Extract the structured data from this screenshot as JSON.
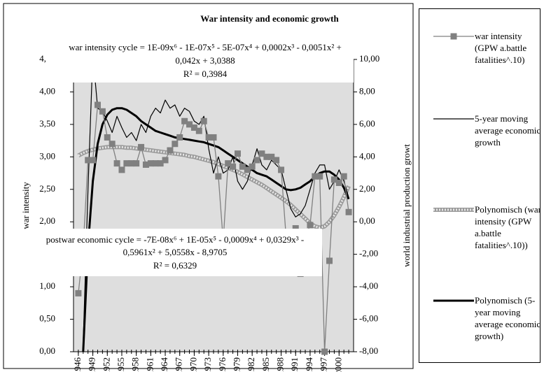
{
  "chart_data": {
    "type": "line",
    "title": "War intensity and economic growth",
    "ylabel": "war intensity",
    "y2label": "world industrial production growt",
    "annotations": [
      {
        "lines": [
          "war intensity cycle = 1E-09x⁶ - 1E-07x⁵ - 5E-07x⁴ + 0,0002x³ - 0,0051x² +",
          "0,042x + 3,0388",
          "R² = 0,3984"
        ]
      },
      {
        "lines": [
          "postwar economic cycle = -7E-08x⁶ + 1E-05x⁵ - 0,0009x⁴ + 0,0329x³ -",
          "0,5961x² + 5,0558x - 8,9705",
          "R² = 0,6329"
        ]
      }
    ],
    "x": [
      1946,
      1947,
      1948,
      1949,
      1950,
      1951,
      1952,
      1953,
      1954,
      1955,
      1956,
      1957,
      1958,
      1959,
      1960,
      1961,
      1962,
      1963,
      1964,
      1965,
      1966,
      1967,
      1968,
      1969,
      1970,
      1971,
      1972,
      1973,
      1974,
      1975,
      1976,
      1977,
      1978,
      1979,
      1980,
      1981,
      1982,
      1983,
      1984,
      1985,
      1986,
      1987,
      1988,
      1989,
      1990,
      1991,
      1992,
      1993,
      1994,
      1995,
      1996,
      1997,
      1998,
      1999,
      2000,
      2001,
      2002
    ],
    "xlim": [
      1945,
      2003
    ],
    "xticks": [
      1946,
      1949,
      1952,
      1955,
      1958,
      1961,
      1964,
      1967,
      1970,
      1973,
      1976,
      1979,
      1982,
      1985,
      1988,
      1991,
      1994,
      1997,
      2000
    ],
    "ylim": [
      0,
      4.5
    ],
    "yticks": [
      {
        "value": 0,
        "label": "0,00"
      },
      {
        "value": 0.5,
        "label": "0,50"
      },
      {
        "value": 1,
        "label": "1,00"
      },
      {
        "value": 1.5,
        "label": "1,50"
      },
      {
        "value": 2,
        "label": "2,00"
      },
      {
        "value": 2.5,
        "label": "2,50"
      },
      {
        "value": 3,
        "label": "3,00"
      },
      {
        "value": 3.5,
        "label": "3,50"
      },
      {
        "value": 4,
        "label": "4,00"
      },
      {
        "value": 4.5,
        "label": "4,50"
      }
    ],
    "y2lim": [
      -8,
      10
    ],
    "y2ticks": [
      {
        "value": -8,
        "label": "-8,00"
      },
      {
        "value": -6,
        "label": "-6,00"
      },
      {
        "value": -4,
        "label": "-4,00"
      },
      {
        "value": -2,
        "label": "-2,00"
      },
      {
        "value": 0,
        "label": "0,00"
      },
      {
        "value": 2,
        "label": "2,00"
      },
      {
        "value": 4,
        "label": "4,00"
      },
      {
        "value": 6,
        "label": "6,00"
      },
      {
        "value": 8,
        "label": "8,00"
      },
      {
        "value": 10,
        "label": "10,00"
      }
    ],
    "series": [
      {
        "name": "war intensity (GPW a.battle fatalities^.10)",
        "color": "#808080",
        "marker": "square",
        "width": 1.3,
        "values": [
          0.9,
          1.6,
          2.95,
          2.95,
          3.8,
          3.7,
          3.3,
          3.2,
          2.9,
          2.8,
          2.9,
          2.9,
          2.9,
          3.15,
          2.88,
          2.9,
          2.9,
          2.9,
          2.95,
          3.1,
          3.2,
          3.3,
          3.55,
          3.5,
          3.45,
          3.4,
          3.55,
          3.3,
          3.3,
          2.7,
          1.7,
          2.9,
          2.85,
          3.05,
          2.85,
          2.8,
          2.85,
          2.95,
          3.05,
          3.0,
          3.0,
          2.95,
          2.8,
          1.8,
          1.8,
          1.9,
          1.2,
          1.75,
          1.95,
          2.7,
          2.7,
          0.0,
          1.4,
          2.65,
          2.6,
          2.7,
          2.15
        ]
      },
      {
        "name": "5-year moving average economic growth",
        "color": "#000000",
        "axis": "y2",
        "width": 1.2,
        "values": [
          null,
          -7.5,
          2,
          10.3,
          7,
          6.8,
          6.2,
          5.5,
          6.5,
          5.8,
          5.2,
          5.5,
          5.0,
          6.0,
          5.5,
          6.5,
          7.0,
          6.7,
          7.5,
          7.0,
          7.2,
          6.5,
          7.0,
          6.8,
          6.2,
          6.0,
          6.5,
          4.5,
          3.0,
          4.0,
          3.0,
          3.2,
          4.0,
          2.5,
          2.0,
          2.5,
          3.5,
          4.5,
          3.5,
          3.2,
          3.8,
          3.5,
          3.2,
          2.0,
          0.8,
          0.3,
          0.5,
          1.0,
          2.0,
          3.0,
          3.5,
          3.5,
          2.0,
          2.5,
          3.2,
          2.5,
          1.5
        ]
      },
      {
        "name": "Polynomisch (war intensity (GPW a.battle fatalities^.10))",
        "color": "#9a9a9a",
        "linestyle": "hatched",
        "width": 6,
        "values": [
          3.02,
          3.06,
          3.09,
          3.11,
          3.13,
          3.14,
          3.15,
          3.15,
          3.15,
          3.15,
          3.14,
          3.14,
          3.13,
          3.12,
          3.11,
          3.1,
          3.09,
          3.08,
          3.07,
          3.06,
          3.05,
          3.04,
          3.03,
          3.01,
          3.0,
          2.98,
          2.96,
          2.94,
          2.92,
          2.89,
          2.86,
          2.83,
          2.8,
          2.77,
          2.73,
          2.69,
          2.65,
          2.61,
          2.57,
          2.52,
          2.47,
          2.42,
          2.37,
          2.32,
          2.26,
          2.19,
          2.12,
          2.05,
          1.98,
          1.93,
          1.91,
          1.93,
          2.0,
          2.1,
          2.23,
          2.38,
          2.55
        ]
      },
      {
        "name": "Polynomisch (5-year moving average economic growth)",
        "color": "#000000",
        "axis": "y2",
        "width": 3,
        "values": [
          null,
          -8,
          -1.5,
          2.5,
          4.8,
          6.0,
          6.6,
          6.9,
          7.0,
          7.0,
          6.9,
          6.7,
          6.5,
          6.2,
          6.0,
          5.8,
          5.6,
          5.5,
          5.4,
          5.3,
          5.2,
          5.15,
          5.1,
          5.05,
          5.0,
          4.95,
          4.9,
          4.8,
          4.7,
          4.6,
          4.4,
          4.2,
          4.0,
          3.8,
          3.6,
          3.4,
          3.2,
          3.0,
          2.9,
          2.8,
          2.6,
          2.4,
          2.2,
          2.0,
          1.95,
          2.0,
          2.1,
          2.3,
          2.5,
          2.8,
          3.0,
          3.1,
          3.1,
          2.9,
          2.6,
          2.1,
          1.4
        ]
      }
    ]
  }
}
